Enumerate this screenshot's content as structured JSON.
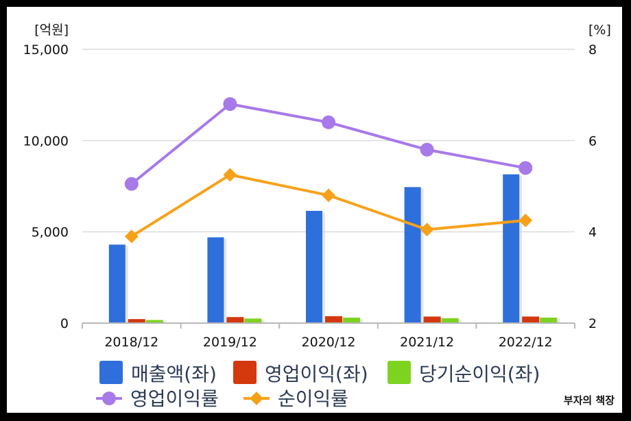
{
  "chart_data": {
    "type": "bar",
    "categories": [
      "2018/12",
      "2019/12",
      "2020/12",
      "2021/12",
      "2022/12"
    ],
    "left_axis": {
      "unit_label": "[억원]",
      "ylim": [
        0,
        15000
      ],
      "ticks": [
        "0",
        "5,000",
        "10,000",
        "15,000"
      ],
      "tick_values": [
        0,
        5000,
        10000,
        15000
      ]
    },
    "right_axis": {
      "unit_label": "[%]",
      "ylim": [
        2,
        8
      ],
      "ticks": [
        "2",
        "4",
        "6",
        "8"
      ],
      "tick_values": [
        2,
        4,
        6,
        8
      ]
    },
    "bar_series": [
      {
        "name": "매출액(좌)",
        "color": "#2e6fdc",
        "values": [
          4300,
          4700,
          6150,
          7450,
          8150
        ]
      },
      {
        "name": "영업이익(좌)",
        "color": "#d4380d",
        "values": [
          220,
          330,
          380,
          360,
          360
        ]
      },
      {
        "name": "당기순이익(좌)",
        "color": "#7ed321",
        "values": [
          170,
          250,
          300,
          270,
          300
        ]
      }
    ],
    "line_series": [
      {
        "name": "영업이익률",
        "color": "#a779e9",
        "marker": "circle",
        "values": [
          5.05,
          6.8,
          6.4,
          5.8,
          5.4
        ]
      },
      {
        "name": "순이익률",
        "color": "#f7a11a",
        "marker": "diamond",
        "values": [
          3.9,
          5.25,
          4.8,
          4.05,
          4.25
        ]
      }
    ],
    "grid": true,
    "legend_position": "bottom"
  },
  "watermark": "부자의 책장"
}
